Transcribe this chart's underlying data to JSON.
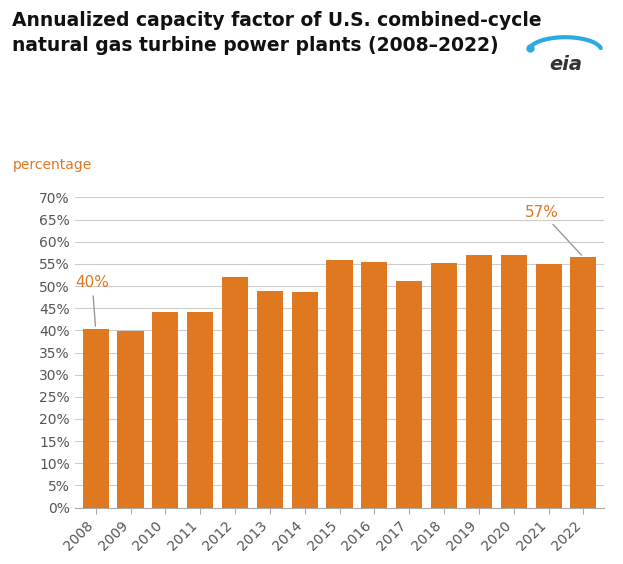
{
  "title": "Annualized capacity factor of U.S. combined-cycle\nnatural gas turbine power plants (2008–2022)",
  "subtitle": "percentage",
  "years": [
    2008,
    2009,
    2010,
    2011,
    2012,
    2013,
    2014,
    2015,
    2016,
    2017,
    2018,
    2019,
    2020,
    2021,
    2022
  ],
  "values": [
    40.3,
    39.9,
    44.2,
    44.1,
    52.1,
    48.8,
    48.7,
    55.8,
    55.4,
    51.1,
    55.1,
    57.1,
    57.0,
    55.0,
    56.5
  ],
  "bar_color": "#E07820",
  "annotation_color": "#E07820",
  "arrow_color": "#999999",
  "background_color": "#ffffff",
  "grid_color": "#cccccc",
  "tick_color": "#555555",
  "ylim": [
    0,
    70
  ],
  "ytick_values": [
    0,
    5,
    10,
    15,
    20,
    25,
    30,
    35,
    40,
    45,
    50,
    55,
    60,
    65,
    70
  ],
  "title_fontsize": 13.5,
  "subtitle_fontsize": 10,
  "tick_fontsize": 10,
  "annotation_fontsize": 11,
  "label_2008": "40%",
  "label_2022": "57%"
}
